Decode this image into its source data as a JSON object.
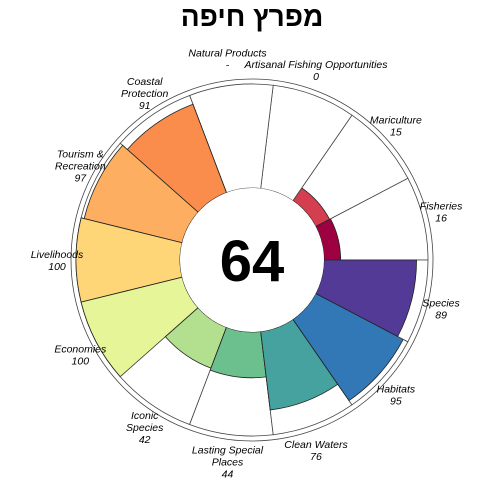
{
  "chart_data": {
    "type": "flower",
    "title": "מפרץ חיפה",
    "center_score": "64",
    "max_score": 100,
    "petals": [
      {
        "name": "Fisheries",
        "label_lines": [
          "Fisheries"
        ],
        "value_label": "16",
        "score": 16,
        "color": "#9e0142"
      },
      {
        "name": "Mariculture",
        "label_lines": [
          "Mariculture"
        ],
        "value_label": "15",
        "score": 15,
        "color": "#d53e4f"
      },
      {
        "name": "Artisanal Fishing Opportunities",
        "label_lines": [
          "Artisanal Fishing Opportunities"
        ],
        "value_label": "0",
        "score": 0,
        "color": "#e9564d"
      },
      {
        "name": "Natural Products",
        "label_lines": [
          "Natural Products"
        ],
        "value_label": "-",
        "score": null,
        "color": "#f46d43"
      },
      {
        "name": "Coastal Protection",
        "label_lines": [
          "Coastal",
          "Protection"
        ],
        "value_label": "91",
        "score": 91,
        "color": "#fb8d4c"
      },
      {
        "name": "Tourism & Recreation",
        "label_lines": [
          "Tourism &",
          "Recreation"
        ],
        "value_label": "97",
        "score": 97,
        "color": "#fdae61"
      },
      {
        "name": "Livelihoods",
        "label_lines": [
          "Livelihoods"
        ],
        "value_label": "100",
        "score": 100,
        "color": "#fed677"
      },
      {
        "name": "Economies",
        "label_lines": [
          "Economies"
        ],
        "value_label": "100",
        "score": 100,
        "color": "#e6f598"
      },
      {
        "name": "Iconic Species",
        "label_lines": [
          "Iconic",
          "Species"
        ],
        "value_label": "42",
        "score": 42,
        "color": "#b3e08f"
      },
      {
        "name": "Lasting Special Places",
        "label_lines": [
          "Lasting Special",
          "Places"
        ],
        "value_label": "44",
        "score": 44,
        "color": "#6cc08e"
      },
      {
        "name": "Clean Waters",
        "label_lines": [
          "Clean Waters"
        ],
        "value_label": "76",
        "score": 76,
        "color": "#45a29f"
      },
      {
        "name": "Habitats",
        "label_lines": [
          "Habitats"
        ],
        "value_label": "95",
        "score": 95,
        "color": "#3277b6"
      },
      {
        "name": "Species",
        "label_lines": [
          "Species"
        ],
        "value_label": "89",
        "score": 89,
        "color": "#523a96"
      }
    ]
  }
}
